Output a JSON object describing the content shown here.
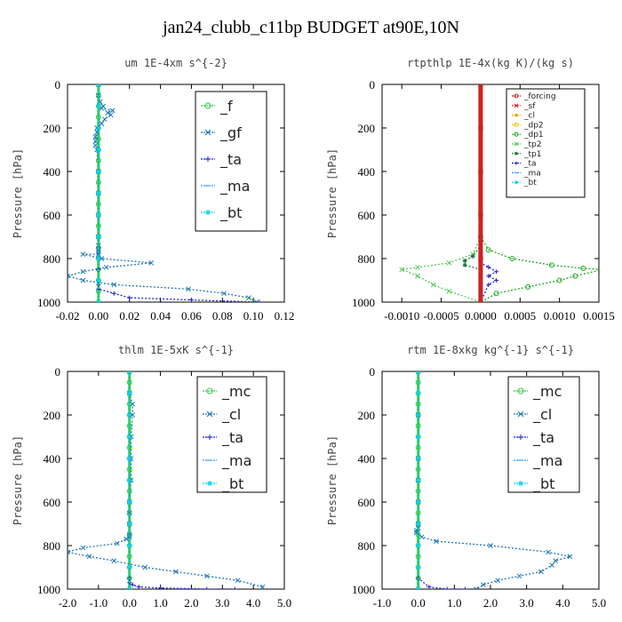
{
  "page": {
    "title": "jan24_clubb_c11bp  BUDGET at90E,10N"
  },
  "chart_data": [
    {
      "type": "line",
      "title": "um   1E-4xm  s^{-2}",
      "ylabel": "Pressure  [hPa]",
      "xlim": [
        -0.02,
        0.12
      ],
      "ylim": [
        1000,
        0
      ],
      "xticks": [
        "-0.02",
        "0.00",
        "0.02",
        "0.04",
        "0.06",
        "0.08",
        "0.10",
        "0.12"
      ],
      "yticks": [
        "0",
        "200",
        "400",
        "600",
        "800",
        "1000"
      ],
      "legend_entries": [
        "_f",
        "_gf",
        "_ta",
        "_ma",
        "_bt"
      ],
      "series": [
        {
          "name": "_f",
          "color": "#2ecc40",
          "marker": "o",
          "x": [
            0,
            0,
            0,
            0,
            0,
            0,
            0,
            0,
            0,
            0,
            0,
            0,
            0,
            0,
            0,
            0,
            0,
            0,
            0,
            0,
            0
          ],
          "y": [
            0,
            50,
            100,
            150,
            200,
            250,
            300,
            350,
            400,
            450,
            500,
            550,
            600,
            650,
            700,
            750,
            800,
            850,
            900,
            950,
            1000
          ]
        },
        {
          "name": "_gf",
          "color": "#1f77b4",
          "marker": "x",
          "x": [
            0,
            0,
            0.001,
            0.003,
            0.002,
            0.009,
            0.006,
            0.008,
            0.004,
            0.002,
            -0.001,
            -0.001,
            -0.002,
            -0.002,
            -0.002,
            -0.001,
            0,
            0,
            0,
            0,
            0,
            0,
            0,
            0,
            -0.01,
            0.002,
            0.034,
            0.005,
            -0.01,
            -0.02,
            -0.01,
            0.01,
            0.058,
            0.081,
            0.097,
            0.102
          ],
          "y": [
            0,
            50,
            80,
            100,
            110,
            120,
            130,
            140,
            160,
            180,
            200,
            220,
            240,
            260,
            280,
            300,
            400,
            500,
            600,
            700,
            740,
            760,
            770,
            780,
            780,
            800,
            820,
            840,
            860,
            880,
            900,
            920,
            940,
            960,
            980,
            1000
          ]
        },
        {
          "name": "_ta",
          "color": "#2222cc",
          "marker": "+",
          "x": [
            0,
            0,
            0,
            0,
            0,
            0,
            0,
            0,
            0,
            0,
            0,
            0,
            0,
            0.01,
            0.02,
            0.06,
            0.104
          ],
          "y": [
            0,
            100,
            200,
            300,
            400,
            500,
            600,
            700,
            800,
            850,
            900,
            920,
            940,
            960,
            980,
            990,
            1000
          ]
        },
        {
          "name": "_ma",
          "color": "#3399ff",
          "marker": "-",
          "x": [
            0,
            0,
            0,
            0,
            0,
            0
          ],
          "y": [
            0,
            200,
            400,
            600,
            800,
            1000
          ]
        },
        {
          "name": "_bt",
          "color": "#00d5ff",
          "marker": "*",
          "x": [
            0,
            0,
            0,
            0,
            0,
            0,
            0,
            0,
            0,
            0,
            0
          ],
          "y": [
            0,
            100,
            200,
            300,
            400,
            500,
            600,
            700,
            800,
            900,
            1000
          ]
        }
      ]
    },
    {
      "type": "line",
      "title": "rtpthlp   1E-4x(kg K)/(kg s)",
      "ylabel": "Pressure  [hPa]",
      "xlim": [
        -0.00125,
        0.0015
      ],
      "ylim": [
        1000,
        0
      ],
      "xticks": [
        "-0.0010",
        "-0.0005",
        "0.0000",
        "0.0005",
        "0.0010",
        "0.0015"
      ],
      "yticks": [
        "0",
        "200",
        "400",
        "600",
        "800",
        "1000"
      ],
      "legend_entries": [
        "_forcing",
        "_sf",
        "_cl",
        "_dp2",
        "_dp1",
        "_tp2",
        "_tp1",
        "_ta",
        "_ma",
        "_bt"
      ],
      "series": [
        {
          "name": "_forcing",
          "color": "#cc2222",
          "marker": "o",
          "x": [
            0,
            0,
            0,
            0,
            0,
            0
          ],
          "y": [
            0,
            200,
            400,
            600,
            800,
            1000
          ]
        },
        {
          "name": "_sf",
          "color": "#cc2222",
          "marker": "x",
          "x": [
            0,
            0,
            0,
            0,
            0,
            0
          ],
          "y": [
            0,
            200,
            400,
            600,
            800,
            1000
          ]
        },
        {
          "name": "_cl",
          "color": "#e8b000",
          "marker": "*",
          "x": [
            0,
            0,
            0,
            0,
            0,
            0
          ],
          "y": [
            0,
            200,
            400,
            600,
            800,
            1000
          ]
        },
        {
          "name": "_dp2",
          "color": "#e8c800",
          "marker": "o",
          "x": [
            0,
            0,
            0,
            0,
            0,
            0
          ],
          "y": [
            0,
            200,
            400,
            600,
            800,
            1000
          ]
        },
        {
          "name": "_dp1",
          "color": "#22aa22",
          "marker": "o",
          "x": [
            0,
            0,
            0.0001,
            0.0004,
            0.0009,
            0.0013,
            0.00155,
            0.0012,
            0.001,
            0.0006,
            0.0002,
            0
          ],
          "y": [
            0,
            700,
            760,
            800,
            830,
            845,
            850,
            880,
            900,
            930,
            960,
            1000
          ]
        },
        {
          "name": "_tp2",
          "color": "#55cc55",
          "marker": "x",
          "x": [
            0,
            0,
            -0.0001,
            -0.0004,
            -0.0008,
            -0.001,
            -0.0008,
            -0.0006,
            -0.0004,
            0
          ],
          "y": [
            0,
            700,
            780,
            820,
            840,
            850,
            880,
            920,
            950,
            1000
          ]
        },
        {
          "name": "_tp1",
          "color": "#227744",
          "marker": "*",
          "x": [
            0,
            0,
            -0.0001,
            -0.0002,
            -0.0002,
            0
          ],
          "y": [
            0,
            740,
            790,
            810,
            830,
            850
          ]
        },
        {
          "name": "_ta",
          "color": "#2222cc",
          "marker": "+",
          "x": [
            0,
            0,
            0.0001,
            0.0002,
            0.0001,
            0.0002,
            0.0001,
            0
          ],
          "y": [
            0,
            820,
            840,
            860,
            880,
            900,
            920,
            1000
          ]
        },
        {
          "name": "_ma",
          "color": "#3399ff",
          "marker": "-",
          "x": [
            0,
            0,
            0,
            0,
            0,
            0
          ],
          "y": [
            0,
            200,
            400,
            600,
            800,
            1000
          ]
        },
        {
          "name": "_bt",
          "color": "#00d5ff",
          "marker": "*",
          "x": [
            0,
            0,
            0,
            0,
            0,
            0
          ],
          "y": [
            0,
            200,
            400,
            600,
            800,
            1000
          ]
        }
      ]
    },
    {
      "type": "line",
      "title": "thlm   1E-5xK  s^{-1}",
      "ylabel": "Pressure  [hPa]",
      "xlim": [
        -2.0,
        5.0
      ],
      "ylim": [
        1000,
        0
      ],
      "xticks": [
        "-2.0",
        "-1.0",
        "0.0",
        "1.0",
        "2.0",
        "3.0",
        "4.0",
        "5.0"
      ],
      "yticks": [
        "0",
        "200",
        "400",
        "600",
        "800",
        "1000"
      ],
      "legend_entries": [
        "_mc",
        "_cl",
        "_ta",
        "_ma",
        "_bt"
      ],
      "series": [
        {
          "name": "_mc",
          "color": "#2ecc40",
          "marker": "o",
          "x": [
            0,
            0,
            0,
            0,
            0,
            0,
            0,
            0,
            0,
            0,
            0,
            0,
            0,
            0,
            0,
            0,
            0,
            0,
            0,
            0,
            0
          ],
          "y": [
            0,
            50,
            100,
            150,
            200,
            250,
            300,
            350,
            400,
            450,
            500,
            550,
            600,
            650,
            700,
            750,
            800,
            850,
            900,
            950,
            1000
          ]
        },
        {
          "name": "_cl",
          "color": "#1f77b4",
          "marker": "x",
          "x": [
            0,
            0,
            0.1,
            0.1,
            0.05,
            0.05,
            0.05,
            0,
            0,
            0,
            0,
            0,
            -0.1,
            -0.4,
            -1.5,
            -2.0,
            -1.3,
            -0.5,
            0.5,
            1.5,
            2.5,
            3.5,
            4.3
          ],
          "y": [
            0,
            100,
            150,
            200,
            300,
            400,
            500,
            600,
            650,
            700,
            750,
            760,
            770,
            790,
            810,
            830,
            850,
            870,
            900,
            920,
            940,
            960,
            990
          ]
        },
        {
          "name": "_ta",
          "color": "#2222cc",
          "marker": "+",
          "x": [
            0,
            0,
            0,
            0,
            0,
            0,
            0,
            0,
            0.1,
            0.3,
            1.0,
            2.5,
            3.4
          ],
          "y": [
            0,
            200,
            400,
            600,
            800,
            900,
            950,
            970,
            980,
            990,
            995,
            1000,
            1000
          ]
        },
        {
          "name": "_ma",
          "color": "#3399ff",
          "marker": "-",
          "x": [
            0,
            0,
            0,
            0,
            0,
            0
          ],
          "y": [
            0,
            200,
            400,
            600,
            800,
            1000
          ]
        },
        {
          "name": "_bt",
          "color": "#00d5ff",
          "marker": "*",
          "x": [
            0,
            0,
            0,
            0,
            0,
            0,
            0,
            0,
            0,
            0,
            0
          ],
          "y": [
            0,
            100,
            200,
            300,
            400,
            500,
            600,
            700,
            800,
            900,
            1000
          ]
        }
      ]
    },
    {
      "type": "line",
      "title": "rtm   1E-8xkg  kg^{-1}  s^{-1}",
      "ylabel": "Pressure  [hPa]",
      "xlim": [
        -1.0,
        5.0
      ],
      "ylim": [
        1000,
        0
      ],
      "xticks": [
        "-1.0",
        "0.0",
        "1.0",
        "2.0",
        "3.0",
        "4.0",
        "5.0"
      ],
      "yticks": [
        "0",
        "200",
        "400",
        "600",
        "800",
        "1000"
      ],
      "legend_entries": [
        "_mc",
        "_cl",
        "_ta",
        "_ma",
        "_bt"
      ],
      "series": [
        {
          "name": "_mc",
          "color": "#2ecc40",
          "marker": "o",
          "x": [
            0,
            0,
            0,
            0,
            0,
            0,
            0,
            0,
            0,
            0,
            0,
            0,
            0,
            0,
            0,
            0,
            0,
            0,
            0,
            0,
            0
          ],
          "y": [
            0,
            50,
            100,
            150,
            200,
            250,
            300,
            350,
            400,
            450,
            500,
            550,
            600,
            650,
            700,
            750,
            800,
            850,
            900,
            950,
            1000
          ]
        },
        {
          "name": "_cl",
          "color": "#1f77b4",
          "marker": "x",
          "x": [
            0,
            0,
            0,
            0,
            0,
            0,
            0,
            -0.05,
            -0.05,
            0.1,
            0.5,
            2.0,
            3.6,
            4.2,
            3.8,
            3.7,
            3.4,
            2.8,
            2.2,
            1.8,
            1.6
          ],
          "y": [
            0,
            200,
            400,
            500,
            600,
            700,
            720,
            730,
            740,
            760,
            780,
            800,
            830,
            850,
            870,
            890,
            920,
            940,
            960,
            980,
            1000
          ]
        },
        {
          "name": "_ta",
          "color": "#2222cc",
          "marker": "+",
          "x": [
            0,
            0,
            0,
            0,
            0,
            0,
            0.3,
            0.8,
            1.3
          ],
          "y": [
            0,
            200,
            400,
            600,
            800,
            950,
            990,
            1000,
            1000
          ]
        },
        {
          "name": "_ma",
          "color": "#3399ff",
          "marker": "-",
          "x": [
            0,
            0,
            0,
            0,
            0,
            0
          ],
          "y": [
            0,
            200,
            400,
            600,
            800,
            1000
          ]
        },
        {
          "name": "_bt",
          "color": "#00d5ff",
          "marker": "*",
          "x": [
            0,
            0,
            0,
            0,
            0,
            0,
            0,
            0,
            0,
            0,
            0
          ],
          "y": [
            0,
            100,
            200,
            300,
            400,
            500,
            600,
            700,
            800,
            900,
            1000
          ]
        }
      ]
    }
  ]
}
